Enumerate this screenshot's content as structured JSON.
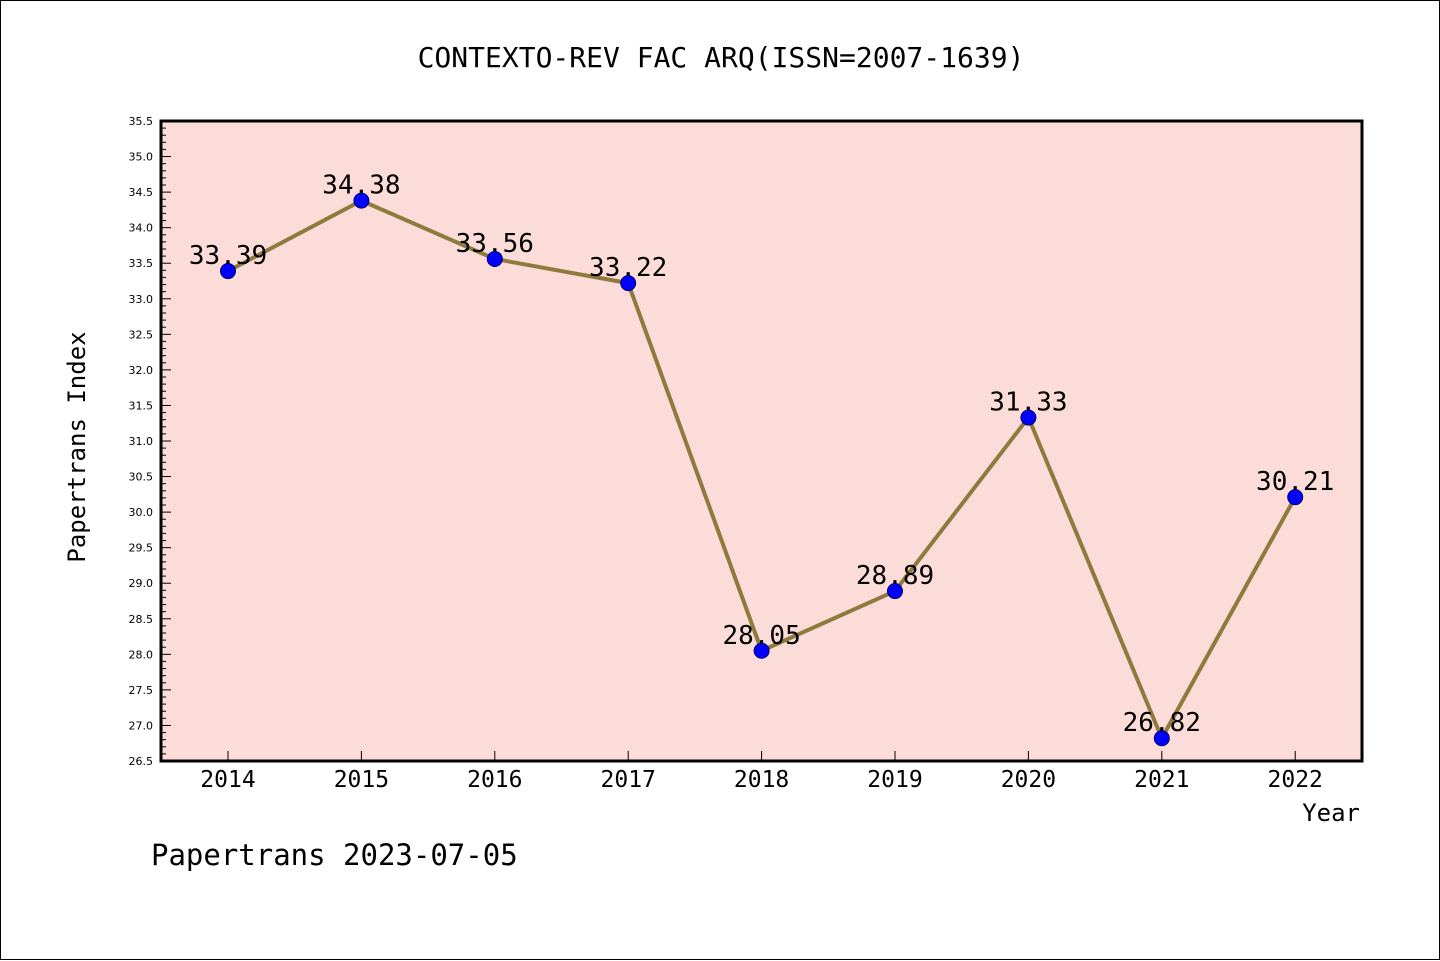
{
  "footer": {
    "text": "Papertrans 2023-07-05"
  },
  "colors": {
    "plot_background": "#fcdcd9",
    "line": "#8f7a3d",
    "marker_fill": "#0000ff",
    "marker_edge": "#000066",
    "frame": "#000000"
  },
  "chart_data": {
    "type": "line",
    "title": "CONTEXTO-REV FAC ARQ(ISSN=2007-1639)",
    "xlabel": "Year",
    "ylabel": "Papertrans Index",
    "categories": [
      "2014",
      "2015",
      "2016",
      "2017",
      "2018",
      "2019",
      "2020",
      "2021",
      "2022"
    ],
    "series": [
      {
        "values": [
          33.39,
          34.38,
          33.56,
          33.22,
          28.05,
          28.89,
          31.33,
          26.82,
          30.21
        ],
        "data_labels": [
          "33.39",
          "34.38",
          "33.56",
          "33.22",
          "28.05",
          "28.89",
          "31.33",
          "26.82",
          "30.21"
        ]
      }
    ],
    "ylim": [
      26.5,
      35.5
    ],
    "yticks": [
      "26.5",
      "27.0",
      "27.5",
      "28.0",
      "28.5",
      "29.0",
      "29.5",
      "30.0",
      "30.5",
      "31.0",
      "31.5",
      "32.0",
      "32.5",
      "33.0",
      "33.5",
      "34.0",
      "34.5",
      "35.0",
      "35.5"
    ],
    "y_minor_step": 0.1,
    "grid": false,
    "legend": "none",
    "markers": "circle"
  }
}
